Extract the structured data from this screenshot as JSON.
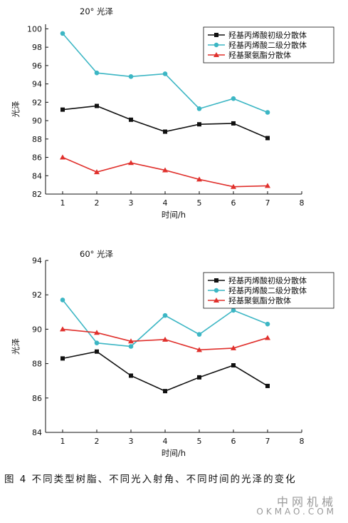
{
  "chart_data": [
    {
      "type": "line",
      "title": "20° 光泽",
      "xlabel": "时间/h",
      "ylabel": "光泽",
      "xlim": [
        0.5,
        8
      ],
      "ylim": [
        82,
        100.5
      ],
      "xticks": [
        1,
        2,
        3,
        4,
        5,
        6,
        7,
        8
      ],
      "yticks": [
        82,
        84,
        86,
        88,
        90,
        92,
        94,
        96,
        98,
        100
      ],
      "legend_position": "top-right",
      "x": [
        1,
        2,
        3,
        4,
        5,
        6,
        7
      ],
      "series": [
        {
          "name": "羟基丙烯酸初级分散体",
          "color": "#111111",
          "marker": "square",
          "values": [
            91.2,
            91.6,
            90.1,
            88.8,
            89.6,
            89.7,
            88.1
          ]
        },
        {
          "name": "羟基丙烯酸二级分散体",
          "color": "#3cb6c4",
          "marker": "circle",
          "values": [
            99.5,
            95.2,
            94.8,
            95.1,
            91.3,
            92.4,
            90.9
          ]
        },
        {
          "name": "羟基聚氨酯分散体",
          "color": "#e0302c",
          "marker": "triangle",
          "values": [
            86.0,
            84.4,
            85.4,
            84.6,
            83.6,
            82.8,
            82.9
          ]
        }
      ]
    },
    {
      "type": "line",
      "title": "60° 光泽",
      "xlabel": "时间/h",
      "ylabel": "光泽",
      "xlim": [
        0.5,
        8
      ],
      "ylim": [
        84,
        94
      ],
      "xticks": [
        1,
        2,
        3,
        4,
        5,
        6,
        7,
        8
      ],
      "yticks": [
        84,
        86,
        88,
        90,
        92,
        94
      ],
      "legend_position": "top-right",
      "x": [
        1,
        2,
        3,
        4,
        5,
        6,
        7
      ],
      "series": [
        {
          "name": "羟基丙烯酸初级分散体",
          "color": "#111111",
          "marker": "square",
          "values": [
            88.3,
            88.7,
            87.3,
            86.4,
            87.2,
            87.9,
            86.7
          ]
        },
        {
          "name": "羟基丙烯酸二级分散体",
          "color": "#3cb6c4",
          "marker": "circle",
          "values": [
            91.7,
            89.2,
            89.0,
            90.8,
            89.7,
            91.1,
            90.3
          ]
        },
        {
          "name": "羟基聚氨酯分散体",
          "color": "#e0302c",
          "marker": "triangle",
          "values": [
            90.0,
            89.8,
            89.3,
            89.4,
            88.8,
            88.9,
            89.5
          ]
        }
      ]
    }
  ],
  "caption": "图 4 不同类型树脂、不同光入射角、不同时间的光泽的变化",
  "watermark": {
    "cn": "中网机械",
    "en": "OKMAO.COM"
  }
}
